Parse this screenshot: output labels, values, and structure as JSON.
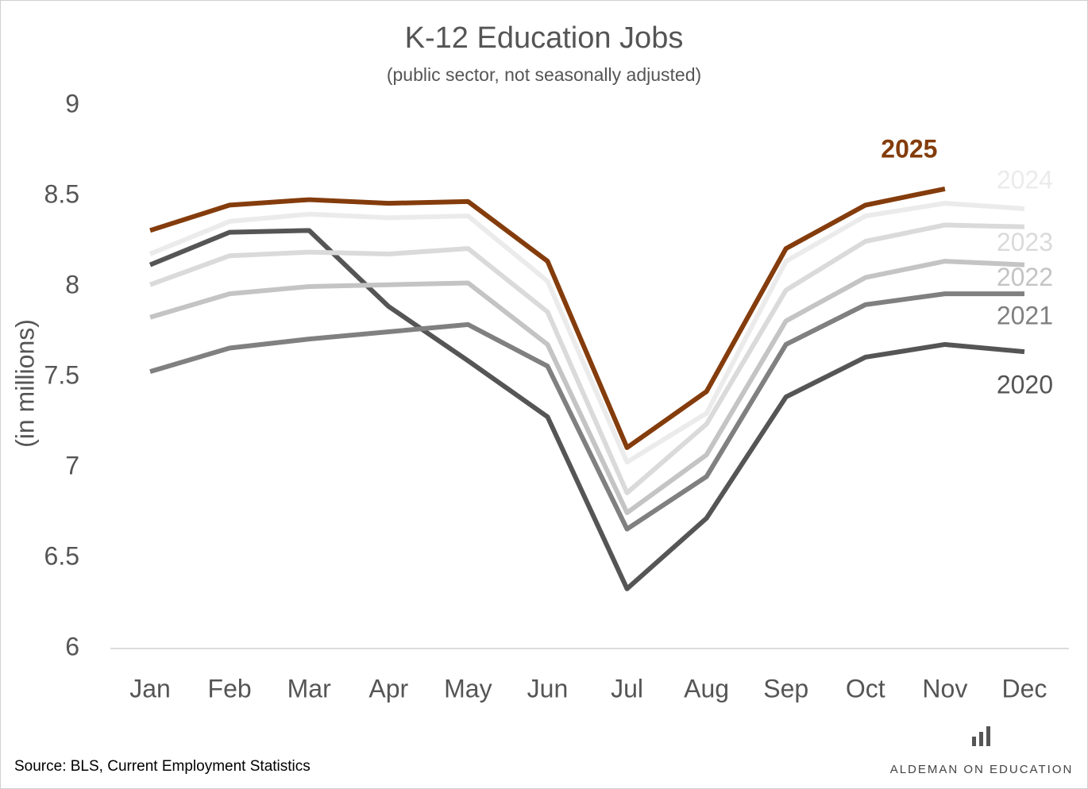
{
  "chart_data": {
    "type": "line",
    "title": "K-12 Education Jobs",
    "subtitle": "(public sector, not seasonally adjusted)",
    "y_label": "(in millions)",
    "source": "Source: BLS, Current Employment Statistics",
    "brand": "ALDEMAN ON EDUCATION",
    "categories": [
      "Jan",
      "Feb",
      "Mar",
      "Apr",
      "May",
      "Jun",
      "Jul",
      "Aug",
      "Sep",
      "Oct",
      "Nov",
      "Dec"
    ],
    "ylim": [
      6,
      9
    ],
    "yticks": [
      6,
      6.5,
      7,
      7.5,
      8,
      8.5,
      9
    ],
    "grid": false,
    "series": [
      {
        "name": "2020",
        "color": "#555555",
        "values": [
          8.12,
          8.3,
          8.31,
          7.89,
          7.59,
          7.28,
          6.33,
          6.72,
          7.39,
          7.61,
          7.68,
          7.64
        ]
      },
      {
        "name": "2021",
        "color": "#808080",
        "values": [
          7.53,
          7.66,
          7.71,
          7.75,
          7.79,
          7.56,
          6.66,
          6.95,
          7.68,
          7.9,
          7.96,
          7.96
        ]
      },
      {
        "name": "2022",
        "color": "#c4c4c4",
        "values": [
          7.83,
          7.96,
          8.0,
          8.01,
          8.02,
          7.68,
          6.75,
          7.07,
          7.81,
          8.05,
          8.14,
          8.12
        ]
      },
      {
        "name": "2023",
        "color": "#dadada",
        "values": [
          8.01,
          8.17,
          8.19,
          8.18,
          8.21,
          7.86,
          6.86,
          7.24,
          7.98,
          8.25,
          8.34,
          8.33
        ]
      },
      {
        "name": "2024",
        "color": "#ebebeb",
        "values": [
          8.18,
          8.36,
          8.4,
          8.38,
          8.39,
          8.03,
          7.03,
          7.3,
          8.14,
          8.39,
          8.46,
          8.43
        ]
      },
      {
        "name": "2025",
        "color": "#843c0c",
        "values": [
          8.31,
          8.45,
          8.48,
          8.46,
          8.47,
          8.14,
          7.11,
          7.42,
          8.21,
          8.45,
          8.54,
          null
        ]
      }
    ]
  }
}
